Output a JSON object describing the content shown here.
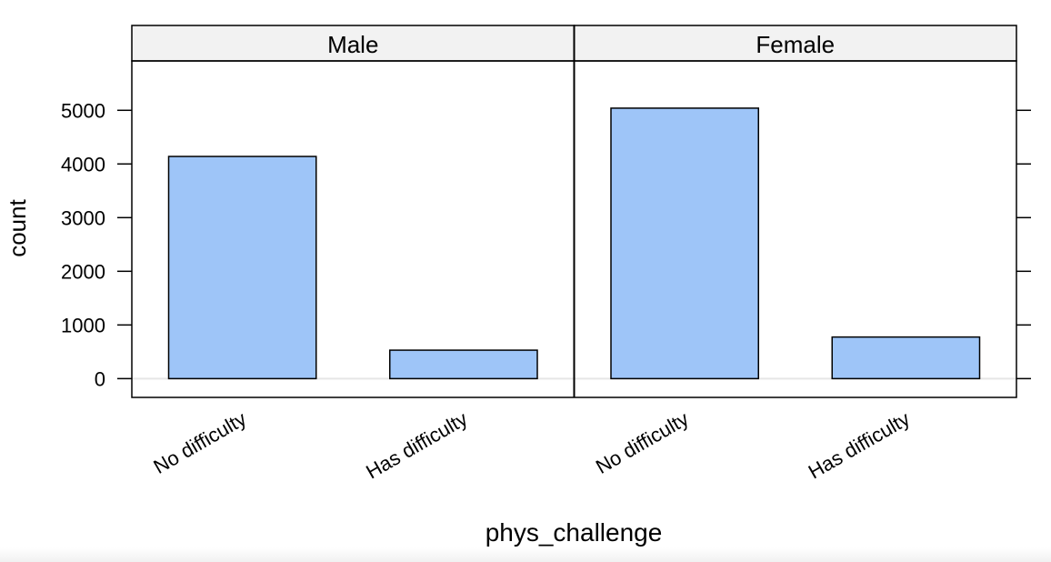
{
  "chart_data": {
    "type": "bar",
    "xlabel": "phys_challenge",
    "ylabel": "count",
    "categories": [
      "No difficulty",
      "Has difficulty"
    ],
    "panels": [
      {
        "name": "Male",
        "values": [
          4140,
          530
        ]
      },
      {
        "name": "Female",
        "values": [
          5040,
          775
        ]
      }
    ],
    "ylim": [
      -350,
      5920
    ],
    "yticks": [
      0,
      1000,
      2000,
      3000,
      4000,
      5000
    ],
    "grid": false,
    "colors": {
      "bar_fill": "#9ec5f8",
      "bar_stroke": "#000000",
      "strip_bg": "#f2f2f2",
      "zero_line": "#e6e6e6"
    }
  }
}
